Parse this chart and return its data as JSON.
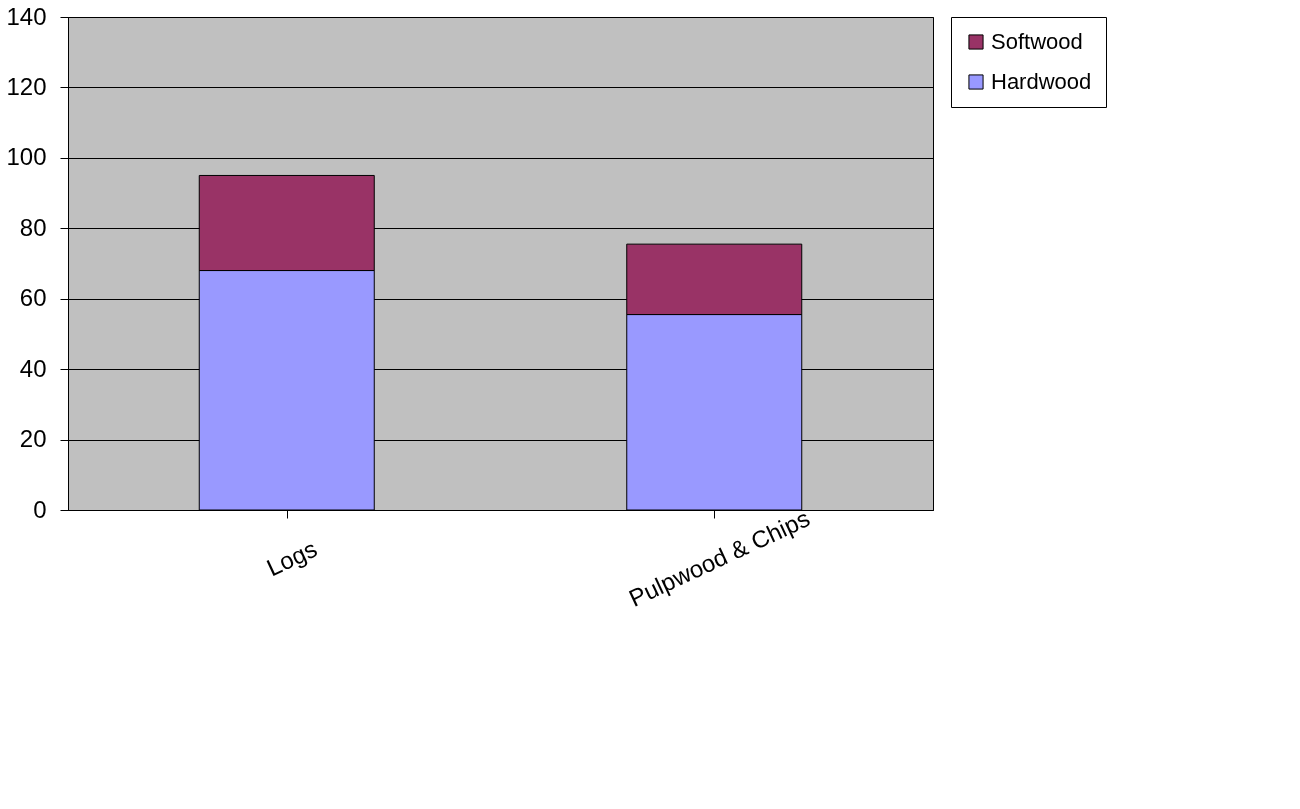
{
  "chart_data": {
    "type": "bar",
    "stacked": true,
    "categories": [
      "Logs",
      "Pulpwood & Chips"
    ],
    "series": [
      {
        "name": "Hardwood",
        "color": "#9999ff",
        "values": [
          68,
          55.5
        ]
      },
      {
        "name": "Softwood",
        "color": "#993366",
        "values": [
          27,
          20
        ]
      }
    ],
    "ylim": [
      0,
      140
    ],
    "yticks": [
      0,
      20,
      40,
      60,
      80,
      100,
      120,
      140
    ],
    "grid": "y",
    "legend": "right"
  }
}
